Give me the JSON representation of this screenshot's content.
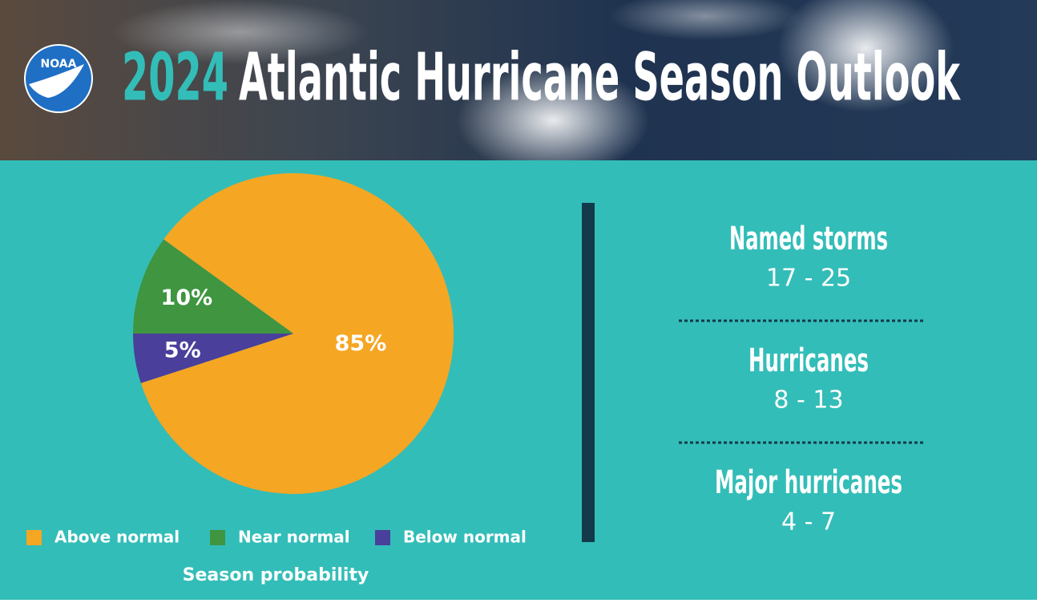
{
  "header": {
    "logo": "NOAA",
    "year": "2024",
    "title": "Atlantic Hurricane Season Outlook"
  },
  "chart_data": {
    "type": "pie",
    "categories": [
      "Above normal",
      "Near normal",
      "Below normal"
    ],
    "values": [
      85,
      10,
      5
    ],
    "value_labels": [
      "85%",
      "10%",
      "5%"
    ],
    "colors": [
      "#f5a623",
      "#3f9540",
      "#4a3f9a"
    ],
    "caption": "Season probability"
  },
  "outlook": [
    {
      "label": "Named storms",
      "range": "17 - 25"
    },
    {
      "label": "Hurricanes",
      "range": "8 - 13"
    },
    {
      "label": "Major hurricanes",
      "range": "4 - 7"
    }
  ]
}
